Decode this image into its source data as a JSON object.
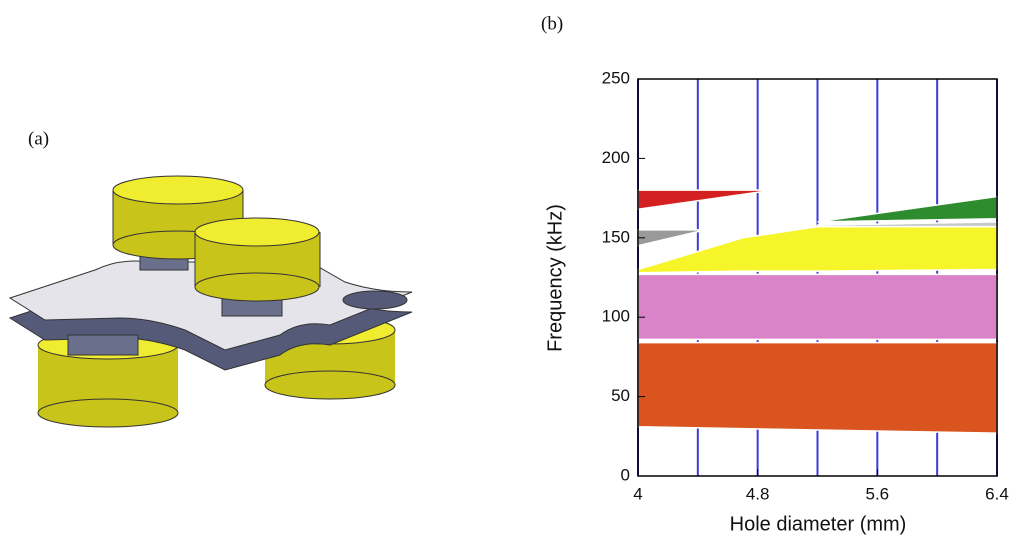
{
  "panel_labels": [
    "(a)",
    "(b)"
  ],
  "chart_data": {
    "type": "band",
    "x_label": "Hole diameter (mm)",
    "y_label": "Frequency (kHz)",
    "xlim": [
      4,
      6.4
    ],
    "xticks": [
      4,
      4.8,
      5.6,
      6.4
    ],
    "ylim": [
      0,
      250
    ],
    "yticks": [
      0,
      50,
      100,
      150,
      200,
      250
    ],
    "vlines": [
      4,
      4.4,
      4.8,
      5.2,
      5.6,
      6.0,
      6.4
    ],
    "vline_color": "#3a3ae0",
    "series": [
      {
        "color": "#d9541e",
        "x": [
          4,
          6.4
        ],
        "lower": [
          31,
          27
        ],
        "upper": [
          84,
          84
        ]
      },
      {
        "color": "#d983c8",
        "x": [
          4,
          6.4
        ],
        "lower": [
          86,
          86
        ],
        "upper": [
          127,
          127
        ]
      },
      {
        "color": "#f5f52a",
        "x": [
          4,
          4.7,
          5.2,
          6.4
        ],
        "lower": [
          128,
          129,
          129,
          130
        ],
        "upper": [
          130,
          150,
          157,
          157
        ]
      },
      {
        "color": "#9a9a9a",
        "x": [
          4,
          4.45
        ],
        "lower": [
          145,
          155
        ],
        "upper": [
          155,
          155
        ]
      },
      {
        "color": "#c8c8c8",
        "x": [
          5.2,
          6.4
        ],
        "lower": [
          157,
          157
        ],
        "upper": [
          158,
          160
        ]
      },
      {
        "color": "#d42020",
        "x": [
          4,
          4.9
        ],
        "lower": [
          168,
          180
        ],
        "upper": [
          180,
          180
        ]
      },
      {
        "color": "#2e8b2e",
        "x": [
          5.2,
          6.4
        ],
        "lower": [
          160,
          162
        ],
        "upper": [
          160,
          176
        ]
      }
    ]
  }
}
